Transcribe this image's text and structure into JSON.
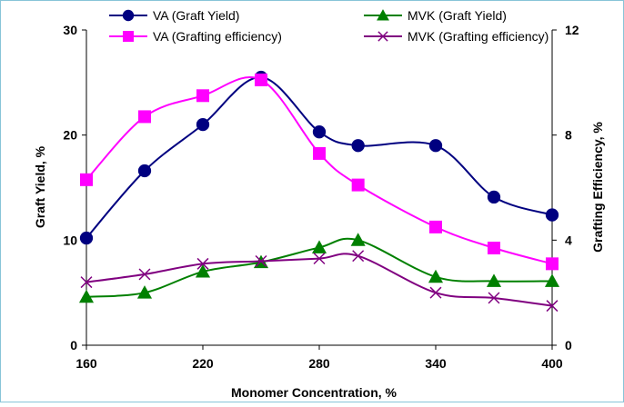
{
  "chart_data": {
    "type": "line",
    "xlabel": "Monomer Concentration, %",
    "ylabel": "Graft Yield, %",
    "y2label": "Grafting Efficiency, %",
    "xlim": [
      160,
      400
    ],
    "ylim": [
      0,
      30
    ],
    "y2lim": [
      0,
      12
    ],
    "xticks": [
      160,
      220,
      280,
      340,
      400
    ],
    "yticks": [
      0,
      10,
      20,
      30
    ],
    "y2ticks": [
      0,
      4,
      8,
      12
    ],
    "grid": false,
    "legend_position": "top",
    "series": [
      {
        "name": "VA (Graft Yield)",
        "axis": "left",
        "color": "#000080",
        "marker": "circle",
        "x": [
          160,
          190,
          220,
          250,
          280,
          300,
          340,
          370,
          400
        ],
        "y": [
          10.2,
          16.6,
          21.0,
          25.5,
          20.3,
          19.0,
          19.0,
          14.1,
          12.4
        ]
      },
      {
        "name": "MVK (Graft Yield)",
        "axis": "left",
        "color": "#008000",
        "marker": "triangle",
        "x": [
          160,
          190,
          220,
          250,
          280,
          300,
          340,
          370,
          400
        ],
        "y": [
          4.6,
          5.0,
          7.0,
          7.9,
          9.3,
          10.0,
          6.5,
          6.1,
          6.1
        ]
      },
      {
        "name": "VA (Grafting efficiency)",
        "axis": "right",
        "color": "#FF00FF",
        "marker": "square",
        "x": [
          160,
          190,
          220,
          250,
          280,
          300,
          340,
          370,
          400
        ],
        "y": [
          6.3,
          8.7,
          9.5,
          10.1,
          7.3,
          6.1,
          4.5,
          3.7,
          3.1
        ]
      },
      {
        "name": "MVK (Grafting efficiency)",
        "axis": "right",
        "color": "#800080",
        "marker": "x",
        "x": [
          160,
          190,
          220,
          250,
          280,
          300,
          340,
          370,
          400
        ],
        "y": [
          2.4,
          2.7,
          3.1,
          3.2,
          3.3,
          3.4,
          2.0,
          1.8,
          1.5
        ]
      }
    ]
  }
}
